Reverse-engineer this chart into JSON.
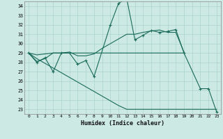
{
  "xlabel": "Humidex (Indice chaleur)",
  "xlim": [
    -0.5,
    23.5
  ],
  "ylim": [
    22.5,
    34.5
  ],
  "yticks": [
    23,
    24,
    25,
    26,
    27,
    28,
    29,
    30,
    31,
    32,
    33,
    34
  ],
  "xticks": [
    0,
    1,
    2,
    3,
    4,
    5,
    6,
    7,
    8,
    9,
    10,
    11,
    12,
    13,
    14,
    15,
    16,
    17,
    18,
    19,
    20,
    21,
    22,
    23
  ],
  "bg_color": "#cce9e4",
  "grid_color": "#aad4cc",
  "line_color": "#1a6b5a",
  "line1_x": [
    0,
    1,
    2,
    3,
    4,
    5,
    6,
    7,
    8,
    10,
    11,
    12,
    13,
    14,
    15,
    16,
    17,
    18,
    19,
    21,
    22,
    23
  ],
  "line1_y": [
    29,
    28,
    28.5,
    27,
    29,
    29,
    27.8,
    28.2,
    26.5,
    32,
    34.3,
    34.8,
    30.4,
    30.9,
    31.4,
    31.2,
    31.3,
    31.5,
    29,
    25.2,
    25.2,
    22.7
  ],
  "line2_x": [
    0,
    1,
    2,
    3,
    4,
    5,
    6,
    7,
    8,
    9,
    10,
    11,
    12,
    13,
    14,
    15,
    16,
    17,
    18,
    19
  ],
  "line2_y": [
    29,
    28.1,
    28.4,
    29,
    29,
    29.1,
    28.7,
    28.7,
    28.9,
    29.5,
    30.0,
    30.5,
    31.0,
    31.0,
    31.2,
    31.35,
    31.45,
    31.2,
    31.2,
    29.1
  ],
  "line3_x": [
    0,
    1,
    2,
    3,
    4,
    5,
    6,
    7,
    8,
    9,
    10,
    11,
    12,
    13,
    14,
    15,
    16,
    17,
    18,
    19
  ],
  "line3_y": [
    29,
    28.8,
    28.9,
    29,
    29,
    29,
    29,
    29,
    29,
    29,
    29,
    29,
    29,
    29,
    29,
    29,
    29,
    29,
    29,
    29
  ],
  "line4_x": [
    0,
    1,
    2,
    3,
    4,
    5,
    6,
    7,
    8,
    9,
    10,
    11,
    12,
    13,
    14,
    15,
    16,
    17,
    18,
    19,
    20,
    21,
    22,
    23
  ],
  "line4_y": [
    29,
    28.4,
    27.9,
    27.4,
    26.9,
    26.4,
    25.9,
    25.4,
    24.9,
    24.4,
    23.9,
    23.4,
    23.0,
    23.0,
    23.0,
    23.0,
    23.0,
    23.0,
    23.0,
    23.0,
    23.0,
    23.0,
    23.0,
    23.0
  ]
}
